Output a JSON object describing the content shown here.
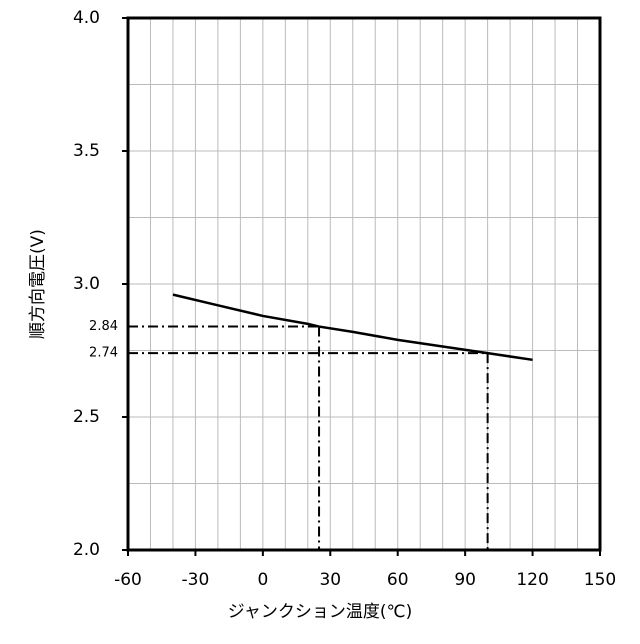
{
  "chart_data": {
    "type": "line",
    "x_label": "ジャンクション温度(℃)",
    "y_label": "順方向電圧(V)",
    "x": [
      -40,
      -20,
      0,
      20,
      25,
      40,
      60,
      80,
      100,
      120
    ],
    "series": [
      {
        "color": "#000000",
        "values": [
          2.96,
          2.92,
          2.88,
          2.85,
          2.84,
          2.82,
          2.79,
          2.765,
          2.74,
          2.715
        ]
      }
    ],
    "xlim": [
      -60,
      150
    ],
    "xticks": [
      -60,
      -30,
      0,
      30,
      60,
      90,
      120,
      150
    ],
    "ylim": [
      2,
      4
    ],
    "yticks": [
      {
        "value": 2,
        "label": "2.0"
      },
      2.5,
      {
        "value": 3,
        "label": "3.0"
      },
      3.5,
      {
        "value": 4,
        "label": "4.0"
      }
    ],
    "xgrid": [
      -50,
      -40,
      -30,
      -20,
      -10,
      0,
      10,
      20,
      30,
      40,
      50,
      60,
      70,
      80,
      90,
      100,
      110,
      120,
      130,
      140
    ],
    "ygrid": [
      2.25,
      2.5,
      2.75,
      3,
      3.25,
      3.5,
      3.75
    ],
    "grid": true,
    "annotations": [
      {
        "x": 25,
        "y": 2.84
      },
      {
        "x": 100,
        "y": 2.74
      }
    ]
  }
}
